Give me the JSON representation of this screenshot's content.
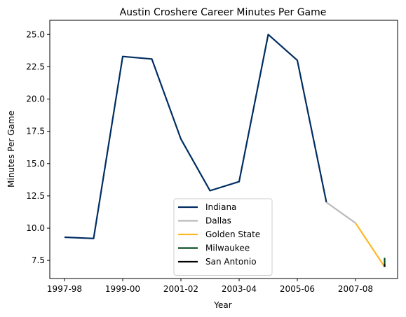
{
  "chart_data": {
    "type": "line",
    "title": "Austin Croshere Career Minutes Per Game",
    "xlabel": "Year",
    "ylabel": "Minutes Per Game",
    "x_tick_labels": [
      "1997-98",
      "1999-00",
      "2001-02",
      "2003-04",
      "2005-06",
      "2007-08"
    ],
    "y_ticks": [
      "7.5",
      "10.0",
      "12.5",
      "15.0",
      "17.5",
      "20.0",
      "22.5",
      "25.0"
    ],
    "ylim": [
      6.1,
      26.1
    ],
    "grid": false,
    "legend_position": "lower-center",
    "series": [
      {
        "name": "Indiana",
        "color": "#002d62",
        "points": [
          {
            "season": "1997-98",
            "y": 9.3
          },
          {
            "season": "1998-99",
            "y": 9.2
          },
          {
            "season": "1999-00",
            "y": 23.3
          },
          {
            "season": "2000-01",
            "y": 23.1
          },
          {
            "season": "2001-02",
            "y": 16.9
          },
          {
            "season": "2002-03",
            "y": 12.9
          },
          {
            "season": "2003-04",
            "y": 13.6
          },
          {
            "season": "2004-05",
            "y": 25.0
          },
          {
            "season": "2005-06",
            "y": 23.0
          },
          {
            "season": "2006-07",
            "y": 12.0
          }
        ]
      },
      {
        "name": "Dallas",
        "color": "#bbbbbb",
        "points": [
          {
            "season": "2006-07",
            "y": 12.0
          },
          {
            "season": "2007-08",
            "y": 10.4
          }
        ]
      },
      {
        "name": "Golden State",
        "color": "#fdb927",
        "points": [
          {
            "season": "2007-08",
            "y": 10.4
          },
          {
            "season": "2008-09",
            "y": 7.0
          }
        ]
      },
      {
        "name": "Milwaukee",
        "color": "#00471b",
        "points": [
          {
            "season": "2008-09",
            "y": 7.0
          },
          {
            "season": "2008-09",
            "y": 7.7
          }
        ]
      },
      {
        "name": "San Antonio",
        "color": "#000000",
        "points": [
          {
            "season": "2008-09",
            "y": 7.0
          },
          {
            "season": "2008-09",
            "y": 7.2
          }
        ]
      }
    ]
  }
}
